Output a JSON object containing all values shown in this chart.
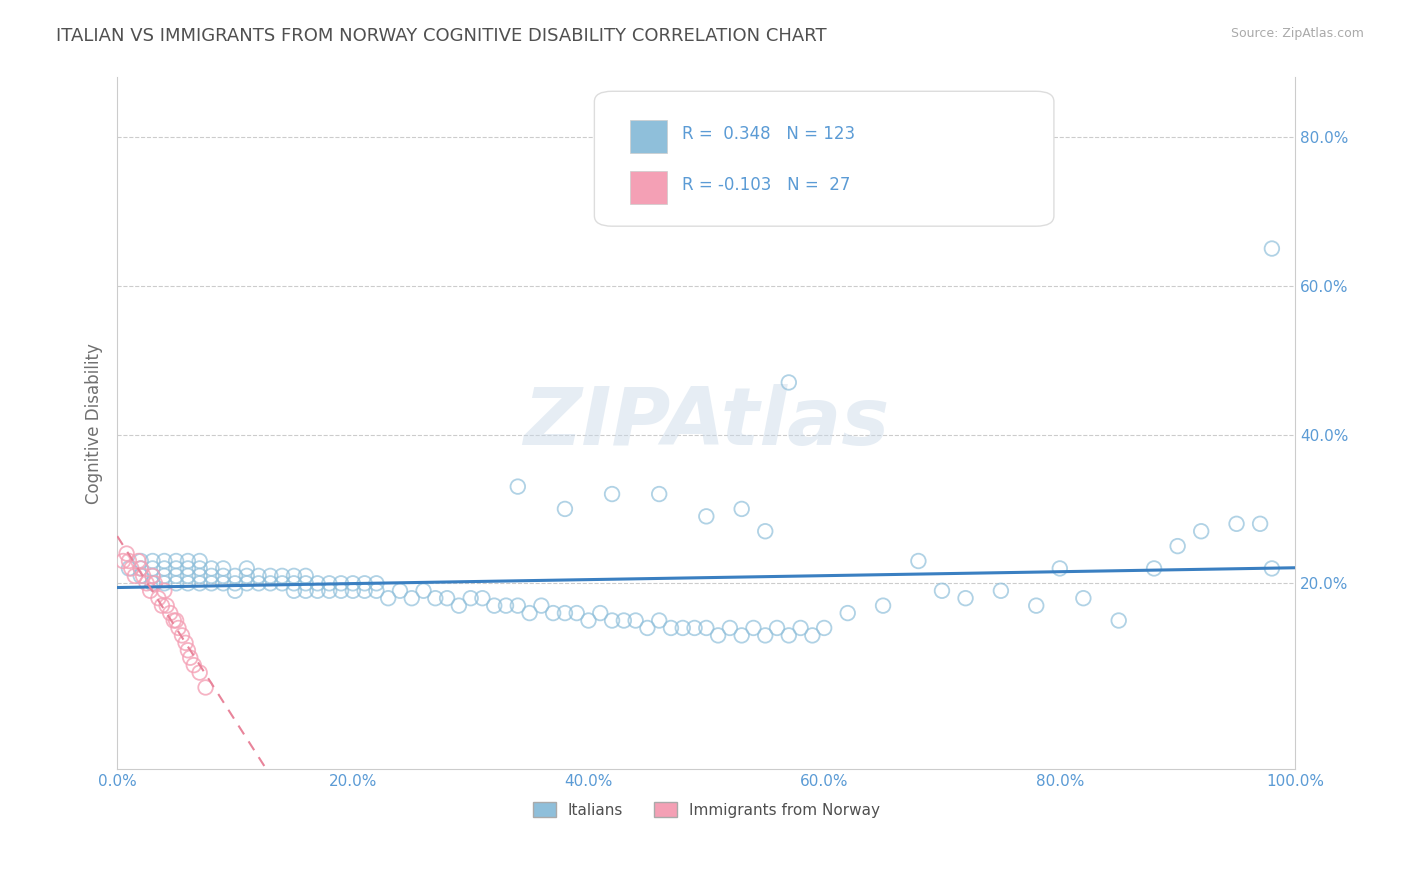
{
  "title": "ITALIAN VS IMMIGRANTS FROM NORWAY COGNITIVE DISABILITY CORRELATION CHART",
  "source_text": "Source: ZipAtlas.com",
  "ylabel": "Cognitive Disability",
  "xlim": [
    0.0,
    1.0
  ],
  "ylim": [
    -0.05,
    0.88
  ],
  "xtick_labels": [
    "0.0%",
    "20.0%",
    "40.0%",
    "60.0%",
    "80.0%",
    "100.0%"
  ],
  "xtick_vals": [
    0.0,
    0.2,
    0.4,
    0.6,
    0.8,
    1.0
  ],
  "ytick_labels": [
    "20.0%",
    "40.0%",
    "60.0%",
    "80.0%"
  ],
  "ytick_vals": [
    0.2,
    0.4,
    0.6,
    0.8
  ],
  "italian_color": "#8fbfda",
  "norway_color": "#f4a0b5",
  "italian_line_color": "#3a7fc1",
  "norway_line_color": "#e8849a",
  "italian_R": 0.348,
  "italian_N": 123,
  "norway_R": -0.103,
  "norway_N": 27,
  "legend_label_1": "Italians",
  "legend_label_2": "Immigrants from Norway",
  "watermark": "ZIPAtlas",
  "background_color": "#ffffff",
  "grid_color": "#cccccc",
  "title_color": "#505050",
  "title_fontsize": 13,
  "axis_label_color": "#707070",
  "tick_label_color": "#5b9bd5",
  "legend_text_color": "#5b9bd5",
  "italian_points_x": [
    0.01,
    0.02,
    0.02,
    0.02,
    0.03,
    0.03,
    0.03,
    0.03,
    0.04,
    0.04,
    0.04,
    0.04,
    0.05,
    0.05,
    0.05,
    0.05,
    0.06,
    0.06,
    0.06,
    0.06,
    0.07,
    0.07,
    0.07,
    0.07,
    0.08,
    0.08,
    0.08,
    0.09,
    0.09,
    0.09,
    0.1,
    0.1,
    0.1,
    0.11,
    0.11,
    0.11,
    0.12,
    0.12,
    0.13,
    0.13,
    0.14,
    0.14,
    0.15,
    0.15,
    0.15,
    0.16,
    0.16,
    0.16,
    0.17,
    0.17,
    0.18,
    0.18,
    0.19,
    0.19,
    0.2,
    0.2,
    0.21,
    0.21,
    0.22,
    0.22,
    0.23,
    0.24,
    0.25,
    0.26,
    0.27,
    0.28,
    0.29,
    0.3,
    0.31,
    0.32,
    0.33,
    0.34,
    0.35,
    0.36,
    0.37,
    0.38,
    0.39,
    0.4,
    0.41,
    0.42,
    0.43,
    0.44,
    0.45,
    0.46,
    0.47,
    0.48,
    0.49,
    0.5,
    0.51,
    0.52,
    0.53,
    0.54,
    0.55,
    0.56,
    0.57,
    0.58,
    0.59,
    0.6,
    0.62,
    0.65,
    0.68,
    0.7,
    0.72,
    0.75,
    0.78,
    0.8,
    0.82,
    0.85,
    0.88,
    0.9,
    0.92,
    0.95,
    0.97,
    0.98,
    0.34,
    0.38,
    0.42,
    0.46,
    0.5,
    0.53,
    0.55,
    0.57,
    0.98
  ],
  "italian_points_y": [
    0.22,
    0.21,
    0.22,
    0.23,
    0.2,
    0.21,
    0.22,
    0.23,
    0.2,
    0.21,
    0.22,
    0.23,
    0.2,
    0.21,
    0.22,
    0.23,
    0.2,
    0.21,
    0.22,
    0.23,
    0.2,
    0.21,
    0.22,
    0.23,
    0.2,
    0.21,
    0.22,
    0.2,
    0.21,
    0.22,
    0.19,
    0.2,
    0.21,
    0.2,
    0.21,
    0.22,
    0.2,
    0.21,
    0.2,
    0.21,
    0.2,
    0.21,
    0.19,
    0.2,
    0.21,
    0.19,
    0.2,
    0.21,
    0.19,
    0.2,
    0.19,
    0.2,
    0.19,
    0.2,
    0.19,
    0.2,
    0.19,
    0.2,
    0.19,
    0.2,
    0.18,
    0.19,
    0.18,
    0.19,
    0.18,
    0.18,
    0.17,
    0.18,
    0.18,
    0.17,
    0.17,
    0.17,
    0.16,
    0.17,
    0.16,
    0.16,
    0.16,
    0.15,
    0.16,
    0.15,
    0.15,
    0.15,
    0.14,
    0.15,
    0.14,
    0.14,
    0.14,
    0.14,
    0.13,
    0.14,
    0.13,
    0.14,
    0.13,
    0.14,
    0.13,
    0.14,
    0.13,
    0.14,
    0.16,
    0.17,
    0.23,
    0.19,
    0.18,
    0.19,
    0.17,
    0.22,
    0.18,
    0.15,
    0.22,
    0.25,
    0.27,
    0.28,
    0.28,
    0.22,
    0.33,
    0.3,
    0.32,
    0.32,
    0.29,
    0.3,
    0.27,
    0.47,
    0.65
  ],
  "norway_points_x": [
    0.005,
    0.008,
    0.01,
    0.012,
    0.015,
    0.018,
    0.02,
    0.022,
    0.025,
    0.028,
    0.03,
    0.032,
    0.035,
    0.038,
    0.04,
    0.042,
    0.045,
    0.048,
    0.05,
    0.052,
    0.055,
    0.058,
    0.06,
    0.062,
    0.065,
    0.07,
    0.075
  ],
  "norway_points_y": [
    0.23,
    0.24,
    0.23,
    0.22,
    0.21,
    0.23,
    0.22,
    0.21,
    0.2,
    0.19,
    0.21,
    0.2,
    0.18,
    0.17,
    0.19,
    0.17,
    0.16,
    0.15,
    0.15,
    0.14,
    0.13,
    0.12,
    0.11,
    0.1,
    0.09,
    0.08,
    0.06
  ]
}
